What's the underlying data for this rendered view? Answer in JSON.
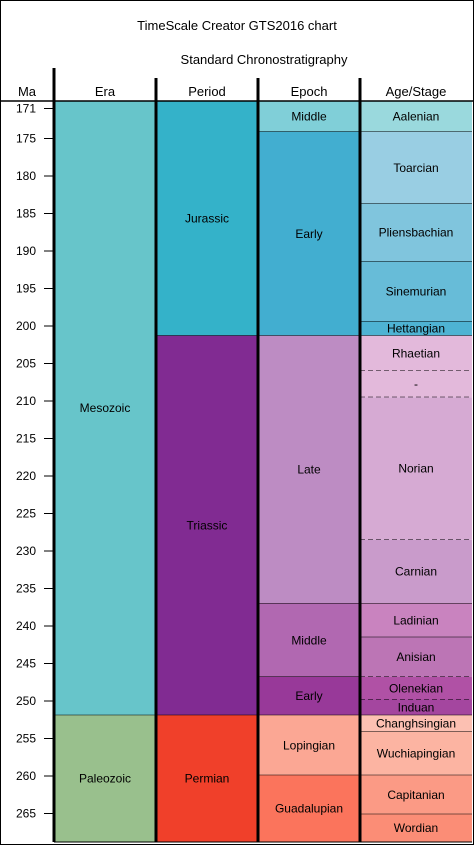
{
  "chart_data": {
    "type": "table",
    "title": "TimeScale Creator GTS2016 chart",
    "subtitle": "Standard Chronostratigraphy",
    "ylabel": "Ma",
    "ylim": [
      170.0,
      268.8
    ],
    "ticks": [
      171,
      175,
      180,
      185,
      190,
      195,
      200,
      205,
      210,
      215,
      220,
      225,
      230,
      235,
      240,
      245,
      250,
      255,
      260,
      265
    ],
    "columns": [
      {
        "header": "Era",
        "units": [
          {
            "name": "Mesozoic",
            "top": 170.0,
            "base": 251.9,
            "color": "#67C5CA",
            "text_color": "#000000"
          },
          {
            "name": "Paleozoic",
            "top": 251.9,
            "base": 268.8,
            "color": "#99C08D",
            "text_color": "#000000"
          }
        ]
      },
      {
        "header": "Period",
        "units": [
          {
            "name": "Jurassic",
            "top": 170.0,
            "base": 201.3,
            "color": "#34B2C9",
            "text_color": "#000000"
          },
          {
            "name": "Triassic",
            "top": 201.3,
            "base": 251.9,
            "color": "#812B92",
            "text_color": "#ffffff"
          },
          {
            "name": "Permian",
            "top": 251.9,
            "base": 268.8,
            "color": "#F0402A",
            "text_color": "#ffffff"
          }
        ]
      },
      {
        "header": "Epoch",
        "units": [
          {
            "name": "Middle",
            "top": 170.0,
            "base": 174.1,
            "color": "#80CFD8",
            "text_color": "#000000"
          },
          {
            "name": "Early",
            "top": 174.1,
            "base": 201.3,
            "color": "#42AED0",
            "text_color": "#000000"
          },
          {
            "name": "Late",
            "top": 201.3,
            "base": 237.0,
            "color": "#BD8CC3",
            "text_color": "#000000"
          },
          {
            "name": "Middle",
            "top": 237.0,
            "base": 246.8,
            "color": "#B168B1",
            "text_color": "#000000"
          },
          {
            "name": "Early",
            "top": 246.8,
            "base": 251.9,
            "color": "#983999",
            "text_color": "#ffffff"
          },
          {
            "name": "Lopingian",
            "top": 251.9,
            "base": 259.9,
            "color": "#FBA794",
            "text_color": "#000000"
          },
          {
            "name": "Guadalupian",
            "top": 259.9,
            "base": 268.8,
            "color": "#FB745C",
            "text_color": "#000000"
          }
        ]
      },
      {
        "header": "Age/Stage",
        "units": [
          {
            "name": "Aalenian",
            "top": 170.0,
            "base": 174.1,
            "color": "#9AD9DD",
            "text_color": "#000000"
          },
          {
            "name": "Toarcian",
            "top": 174.1,
            "base": 183.7,
            "color": "#99CEE3",
            "text_color": "#000000"
          },
          {
            "name": "Pliensbachian",
            "top": 183.7,
            "base": 191.4,
            "color": "#80C5DD",
            "text_color": "#000000"
          },
          {
            "name": "Sinemurian",
            "top": 191.4,
            "base": 199.4,
            "color": "#67BCD8",
            "text_color": "#000000"
          },
          {
            "name": "Hettangian",
            "top": 199.4,
            "base": 201.3,
            "color": "#4EB3D3",
            "text_color": "#000000"
          },
          {
            "name": "Rhaetian",
            "top": 201.3,
            "base": 206.0,
            "color": "#E3B9DB",
            "text_color": "#000000",
            "base_style": "dashed"
          },
          {
            "name": "-",
            "top": 206.0,
            "base": 209.5,
            "color": "#E3B9DB",
            "text_color": "#000000",
            "base_style": "dashed"
          },
          {
            "name": "Norian",
            "top": 209.5,
            "base": 228.5,
            "color": "#D6AAD3",
            "text_color": "#000000",
            "base_style": "dashed"
          },
          {
            "name": "Carnian",
            "top": 228.5,
            "base": 237.0,
            "color": "#C99BCB",
            "text_color": "#000000"
          },
          {
            "name": "Ladinian",
            "top": 237.0,
            "base": 241.5,
            "color": "#C983BF",
            "text_color": "#000000"
          },
          {
            "name": "Anisian",
            "top": 241.5,
            "base": 246.8,
            "color": "#BC75B5",
            "text_color": "#000000",
            "base_style": "dashed"
          },
          {
            "name": "Olenekian",
            "top": 246.8,
            "base": 249.8,
            "color": "#B051A5",
            "text_color": "#ffffff",
            "base_style": "dashed"
          },
          {
            "name": "Induan",
            "top": 249.8,
            "base": 251.9,
            "color": "#A4469F",
            "text_color": "#ffffff"
          },
          {
            "name": "Changhsingian",
            "top": 251.9,
            "base": 254.1,
            "color": "#FCC0B2",
            "text_color": "#000000"
          },
          {
            "name": "Wuchiapingian",
            "top": 254.1,
            "base": 259.9,
            "color": "#FCB4A2",
            "text_color": "#000000"
          },
          {
            "name": "Capitanian",
            "top": 259.9,
            "base": 265.1,
            "color": "#FB9A85",
            "text_color": "#000000"
          },
          {
            "name": "Wordian",
            "top": 265.1,
            "base": 268.8,
            "color": "#FB8D76",
            "text_color": "#000000"
          }
        ]
      }
    ]
  }
}
